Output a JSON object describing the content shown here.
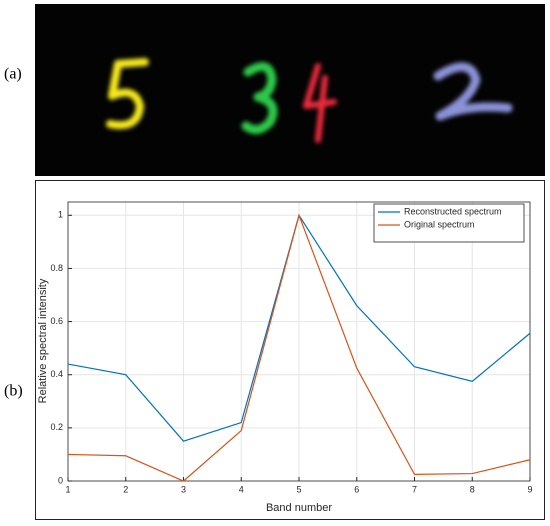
{
  "panel_labels": [
    "(a)",
    "(b)"
  ],
  "chart_data": {
    "type": "line",
    "xlabel": "Band number",
    "ylabel": "Relative spectral intensity",
    "x": [
      1,
      2,
      3,
      4,
      5,
      6,
      7,
      8,
      9
    ],
    "series": [
      {
        "name": "Reconstructed spectrum",
        "color": "#0072bd",
        "values": [
          0.44,
          0.4,
          0.15,
          0.22,
          1.0,
          0.66,
          0.43,
          0.375,
          0.556
        ]
      },
      {
        "name": "Original spectrum",
        "color": "#d95319",
        "values": [
          0.1,
          0.095,
          0.0,
          0.19,
          1.0,
          0.425,
          0.025,
          0.028,
          0.08
        ]
      }
    ],
    "xlim": [
      1,
      9
    ],
    "xticks": [
      1,
      2,
      3,
      4,
      5,
      6,
      7,
      8,
      9
    ],
    "ylim": [
      0,
      1.05
    ],
    "yticks": [
      0,
      0.2,
      0.4,
      0.6,
      0.8,
      1
    ],
    "grid": true,
    "legend": "top-right"
  }
}
